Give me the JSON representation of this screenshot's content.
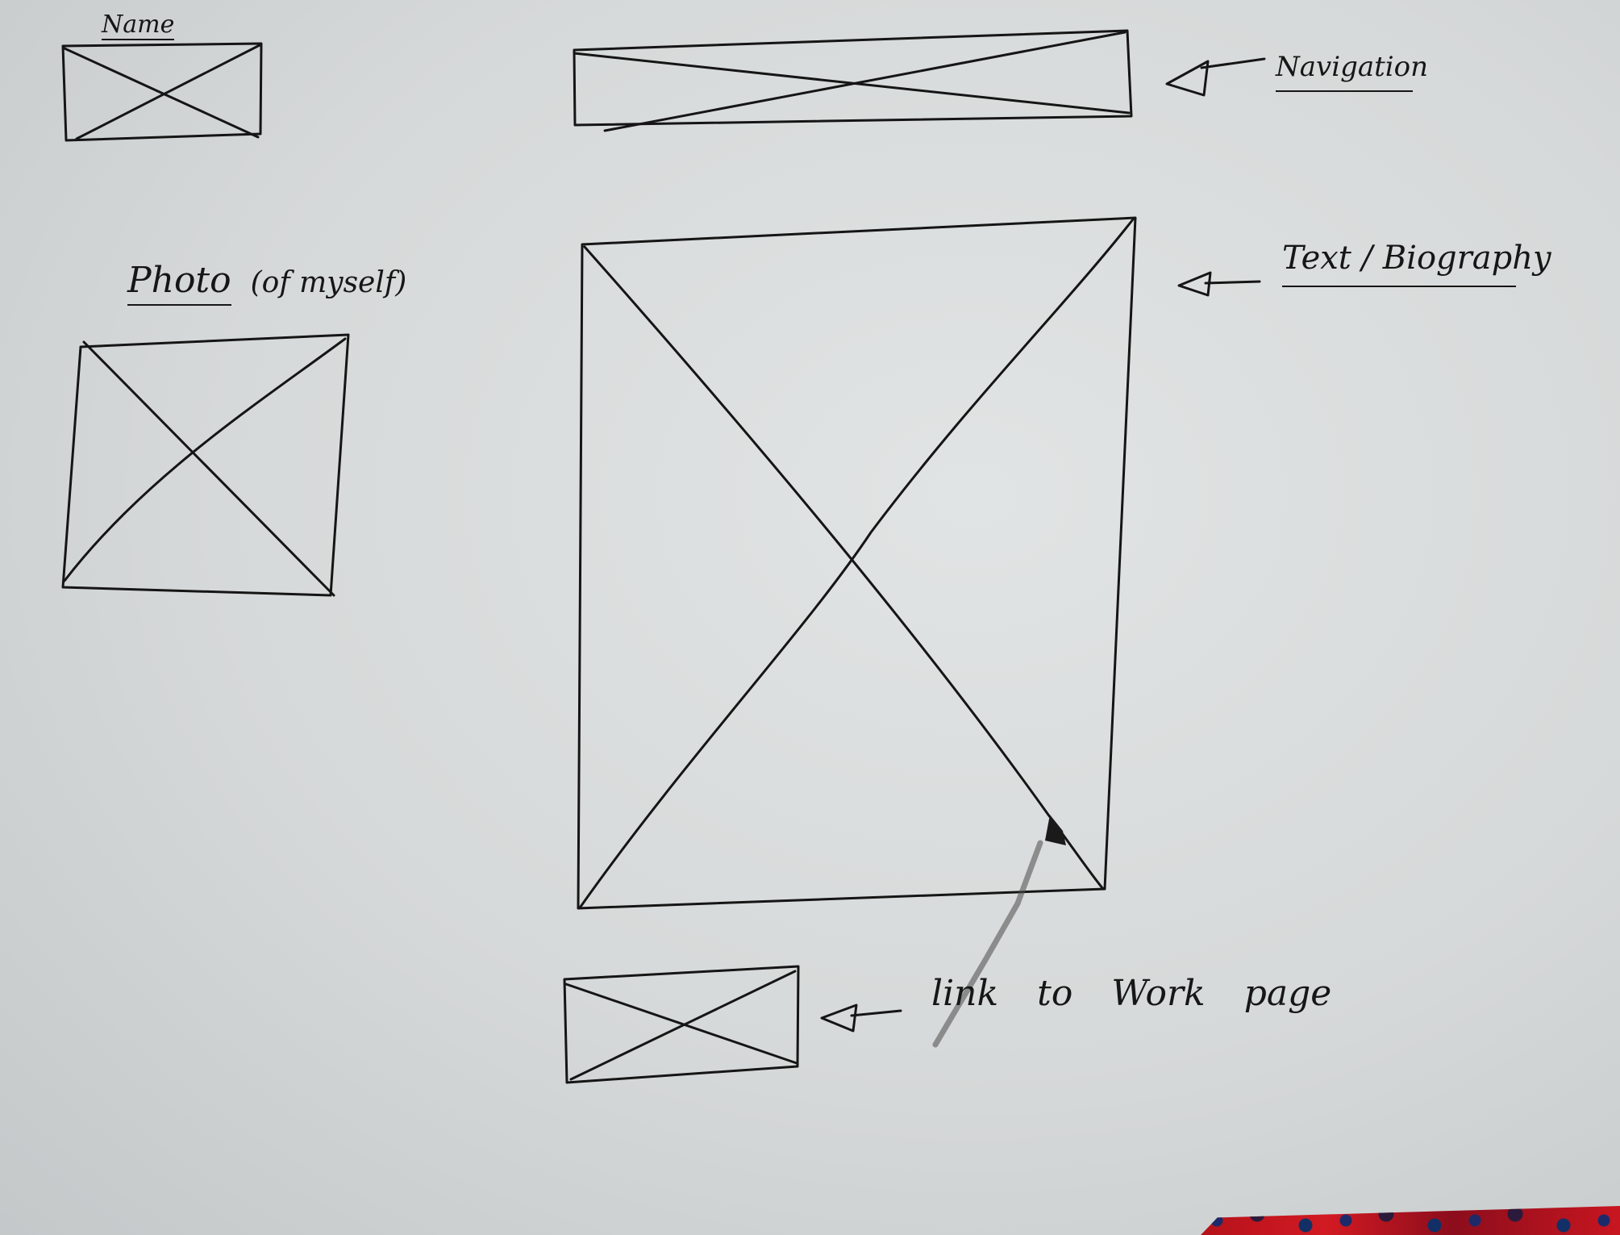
{
  "labels": {
    "name": "Name",
    "navigation": "Navigation",
    "photo": "Photo",
    "photo_note": "(of myself)",
    "biography": "Text / Biography",
    "work_link": "link to Work page"
  },
  "colors": {
    "paper": "#d9dcdc",
    "ink": "#151515"
  }
}
